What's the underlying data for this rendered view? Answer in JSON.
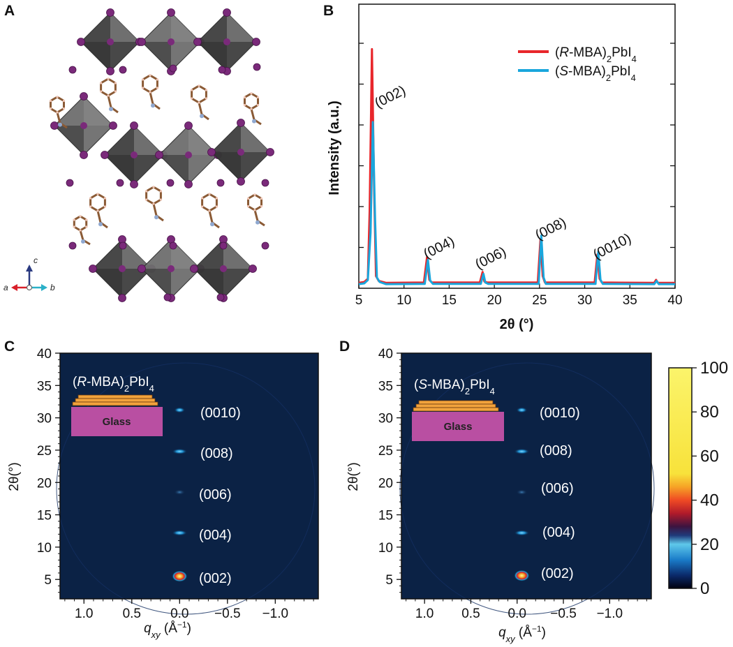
{
  "panels": {
    "a": {
      "label": "A",
      "axes": {
        "a": "a",
        "b": "b",
        "c": "c"
      },
      "colors": {
        "octahedron": "#5a5a5a",
        "iodine": "#7a2a7a",
        "carbon": "#8a5a35",
        "nitrogen": "#8fa8d0"
      }
    },
    "b": {
      "label": "B",
      "xlabel": "2θ (°)",
      "ylabel": "Intensity (a.u.)",
      "xticks": [
        "5",
        "10",
        "15",
        "20",
        "25",
        "30",
        "35",
        "40"
      ],
      "legend": {
        "r": "(R-MBA)2PbI4",
        "s": "(S-MBA)2PbI4"
      },
      "peaks": [
        "(002)",
        "(004)",
        "(006)",
        "(008)",
        "(0010)"
      ]
    },
    "c": {
      "label": "C",
      "sample": "(R-MBA)2PbI4",
      "substrate": "Glass",
      "ylabel": "2θ(°)",
      "xlabel": "qxy (Å−1)",
      "yticks": [
        "40",
        "35",
        "30",
        "25",
        "20",
        "15",
        "10",
        "5"
      ],
      "xticks": [
        "1.0",
        "0.5",
        "0.0",
        "−0.5",
        "−1.0"
      ],
      "peaks": [
        "(0010)",
        "(008)",
        "(006)",
        "(004)",
        "(002)"
      ]
    },
    "d": {
      "label": "D",
      "sample": "(S-MBA)2PbI4",
      "substrate": "Glass",
      "ylabel": "2θ(°)",
      "xlabel": "qxy (Å−1)",
      "yticks": [
        "40",
        "35",
        "30",
        "25",
        "20",
        "15",
        "10",
        "5"
      ],
      "xticks": [
        "1.0",
        "0.5",
        "0.0",
        "−0.5",
        "−1.0"
      ],
      "peaks": [
        "(0010)",
        "(008)",
        "(006)",
        "(004)",
        "(002)"
      ],
      "colorbar_ticks": [
        "100",
        "80",
        "60",
        "40",
        "20",
        "0"
      ]
    }
  },
  "chart_data": [
    {
      "type": "line",
      "xlabel": "2θ (°)",
      "ylabel": "Intensity (a.u.)",
      "xlim": [
        5,
        40
      ],
      "ylim": [
        0,
        100
      ],
      "series": [
        {
          "name": "(R-MBA)2PbI4",
          "color": "#e8262b",
          "x": [
            5.0,
            5.6,
            6.0,
            6.2,
            6.45,
            6.7,
            6.9,
            7.2,
            8.0,
            12.2,
            12.55,
            12.8,
            13.1,
            18.4,
            18.7,
            18.9,
            19.2,
            24.8,
            25.1,
            25.35,
            25.6,
            31.1,
            31.4,
            31.65,
            31.9,
            37.7,
            37.9,
            38.1,
            40.0
          ],
          "y": [
            1.5,
            1.8,
            3.0,
            28,
            88,
            35,
            4.0,
            2.2,
            1.5,
            1.6,
            11.0,
            2.6,
            1.6,
            1.6,
            5.5,
            2.0,
            1.6,
            1.6,
            17.5,
            4.0,
            1.6,
            1.6,
            12.0,
            3.0,
            1.6,
            1.5,
            2.6,
            1.5,
            1.5
          ]
        },
        {
          "name": "(S-MBA)2PbI4",
          "color": "#1aa6dc",
          "x": [
            5.0,
            5.6,
            6.0,
            6.3,
            6.55,
            6.8,
            7.0,
            7.3,
            8.0,
            12.3,
            12.65,
            12.9,
            13.2,
            18.5,
            18.8,
            19.0,
            19.3,
            24.9,
            25.2,
            25.45,
            25.7,
            31.2,
            31.5,
            31.75,
            32.0,
            37.7,
            37.95,
            38.2,
            40.0
          ],
          "y": [
            1.0,
            1.3,
            2.5,
            20,
            61,
            25,
            3.5,
            1.8,
            1.0,
            1.1,
            10.0,
            2.3,
            1.1,
            1.1,
            4.8,
            1.6,
            1.1,
            1.1,
            19.0,
            3.5,
            1.1,
            1.1,
            13.0,
            2.6,
            1.1,
            1.0,
            2.2,
            1.0,
            1.0
          ]
        }
      ]
    },
    {
      "type": "heatmap",
      "name": "(R-MBA)2PbI4",
      "xlabel": "qxy (Å−1)",
      "ylabel": "2θ(°)",
      "xlim": [
        1.25,
        -1.45
      ],
      "ylim": [
        2,
        40
      ],
      "spots": [
        {
          "q": 0.0,
          "two_theta": 5.5,
          "intensity": 100
        },
        {
          "q": 0.0,
          "two_theta": 12.2,
          "intensity": 30
        },
        {
          "q": 0.0,
          "two_theta": 18.5,
          "intensity": 15
        },
        {
          "q": 0.0,
          "two_theta": 24.8,
          "intensity": 30
        },
        {
          "q": 0.0,
          "two_theta": 31.2,
          "intensity": 22
        }
      ]
    },
    {
      "type": "heatmap",
      "name": "(S-MBA)2PbI4",
      "xlabel": "qxy (Å−1)",
      "ylabel": "2θ(°)",
      "xlim": [
        1.25,
        -1.45
      ],
      "ylim": [
        2,
        40
      ],
      "spots": [
        {
          "q": -0.05,
          "two_theta": 5.6,
          "intensity": 100
        },
        {
          "q": -0.05,
          "two_theta": 12.2,
          "intensity": 28
        },
        {
          "q": -0.05,
          "two_theta": 18.5,
          "intensity": 14
        },
        {
          "q": -0.05,
          "two_theta": 24.8,
          "intensity": 32
        },
        {
          "q": -0.05,
          "two_theta": 31.2,
          "intensity": 20
        }
      ],
      "colorbar": {
        "min": 0,
        "max": 100
      }
    }
  ]
}
